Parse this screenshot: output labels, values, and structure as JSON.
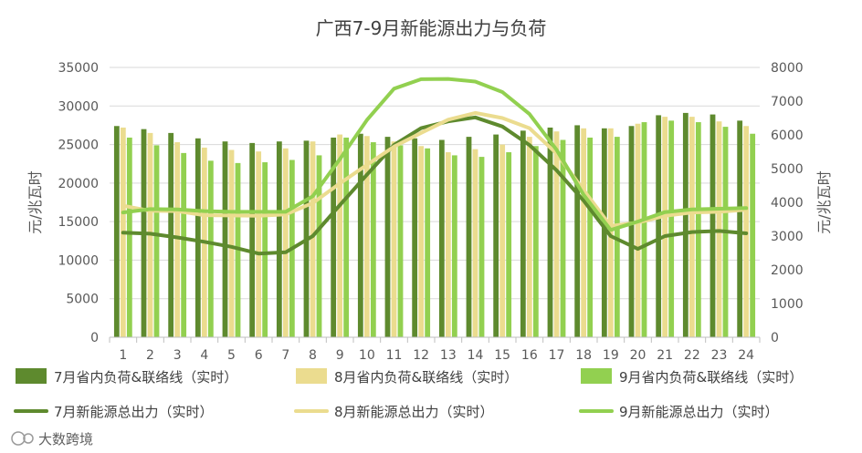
{
  "chart_data": {
    "type": "bar",
    "title": "广西7-9月新能源出力与负荷",
    "categories": [
      "1",
      "2",
      "3",
      "4",
      "5",
      "6",
      "7",
      "8",
      "9",
      "10",
      "11",
      "12",
      "13",
      "14",
      "15",
      "16",
      "17",
      "18",
      "19",
      "20",
      "21",
      "22",
      "23",
      "24"
    ],
    "y_left": {
      "label": "元/兆瓦时",
      "ylim": [
        0,
        35000
      ],
      "ticks": [
        "0",
        "5000",
        "10000",
        "15000",
        "20000",
        "25000",
        "30000",
        "35000"
      ]
    },
    "y_right": {
      "label": "元/兆瓦时",
      "ylim": [
        0,
        8000
      ],
      "ticks": [
        "0",
        "1000",
        "2000",
        "3000",
        "4000",
        "5000",
        "6000",
        "7000",
        "8000"
      ]
    },
    "series": [
      {
        "name": "7月省内负荷&联络线（实时）",
        "kind": "bar",
        "axis": "left",
        "color": "#5E8A2E",
        "values": [
          27400,
          27000,
          26500,
          25800,
          25400,
          25200,
          25400,
          25500,
          25900,
          26400,
          26000,
          25800,
          25600,
          26000,
          26300,
          26800,
          27200,
          27500,
          27100,
          27400,
          28800,
          29100,
          28900,
          28100
        ]
      },
      {
        "name": "8月省内负荷&联络线（实时）",
        "kind": "bar",
        "axis": "left",
        "color": "#EBDC8F",
        "values": [
          27200,
          26500,
          25300,
          24600,
          24300,
          24100,
          24500,
          25400,
          26300,
          26100,
          25400,
          24800,
          24000,
          24400,
          25000,
          26000,
          26700,
          27100,
          27100,
          27700,
          28600,
          28600,
          28000,
          27400
        ]
      },
      {
        "name": "9月省内负荷&联络线（实时）",
        "kind": "bar",
        "axis": "left",
        "color": "#92D050",
        "values": [
          25900,
          24900,
          23900,
          22900,
          22600,
          22700,
          23000,
          23600,
          25900,
          25300,
          24900,
          24500,
          23600,
          23400,
          24000,
          24800,
          25600,
          25900,
          26000,
          27900,
          28100,
          27900,
          27300,
          26400
        ]
      },
      {
        "name": "7月新能源总出力（实时）",
        "kind": "line",
        "axis": "right",
        "color": "#5E8A2E",
        "values": [
          3100,
          3070,
          2960,
          2830,
          2680,
          2480,
          2520,
          3000,
          3920,
          4820,
          5700,
          6200,
          6400,
          6520,
          6250,
          5700,
          4950,
          4050,
          3000,
          2620,
          3000,
          3120,
          3150,
          3080
        ]
      },
      {
        "name": "8月新能源总出力（实时）",
        "kind": "line",
        "axis": "right",
        "color": "#EBDC8F",
        "values": [
          3900,
          3750,
          3740,
          3620,
          3610,
          3600,
          3640,
          3980,
          4560,
          5110,
          5650,
          6060,
          6450,
          6650,
          6500,
          6200,
          5450,
          4360,
          3300,
          3400,
          3600,
          3700,
          3720,
          3780
        ]
      },
      {
        "name": "9月新能源总出力（实时）",
        "kind": "line",
        "axis": "right",
        "color": "#92D050",
        "values": [
          3700,
          3800,
          3790,
          3740,
          3720,
          3720,
          3720,
          4180,
          5280,
          6440,
          7370,
          7650,
          7660,
          7580,
          7270,
          6620,
          5560,
          4220,
          3180,
          3430,
          3710,
          3790,
          3810,
          3830
        ]
      }
    ],
    "legend_position": "bottom",
    "grid": true
  },
  "watermark": {
    "text": "大数跨境"
  }
}
